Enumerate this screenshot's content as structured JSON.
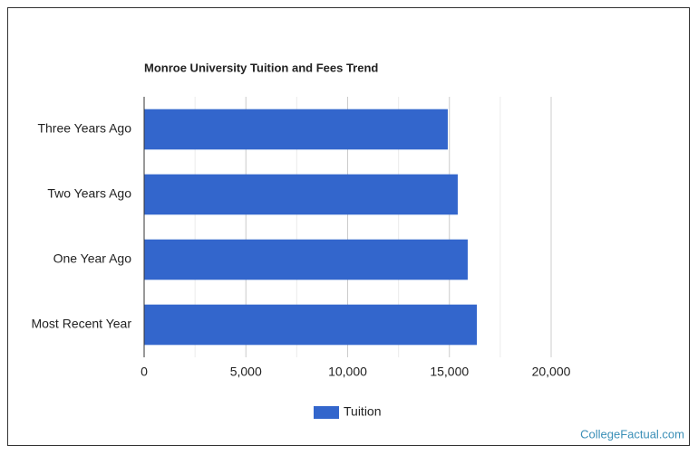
{
  "chart_data": {
    "type": "hbar",
    "title": "Monroe University Tuition and Fees Trend",
    "categories": [
      "Three Years Ago",
      "Two Years Ago",
      "One Year Ago",
      "Most Recent Year"
    ],
    "series": [
      {
        "name": "Tuition",
        "color": "#3366cc",
        "values": [
          14920,
          15410,
          15900,
          16350
        ]
      }
    ],
    "xlim": [
      0,
      20000
    ],
    "xticks": [
      0,
      {
        "value": 5000,
        "label": "5,000"
      },
      {
        "value": 10000,
        "label": "10,000"
      },
      {
        "value": 15000,
        "label": "15,000"
      },
      {
        "value": 20000,
        "label": "20,000"
      }
    ],
    "minor_xticks": [
      2500,
      7500,
      12500,
      17500
    ],
    "grid": true,
    "legend": "bottom"
  },
  "footer": "CollegeFactual.com"
}
